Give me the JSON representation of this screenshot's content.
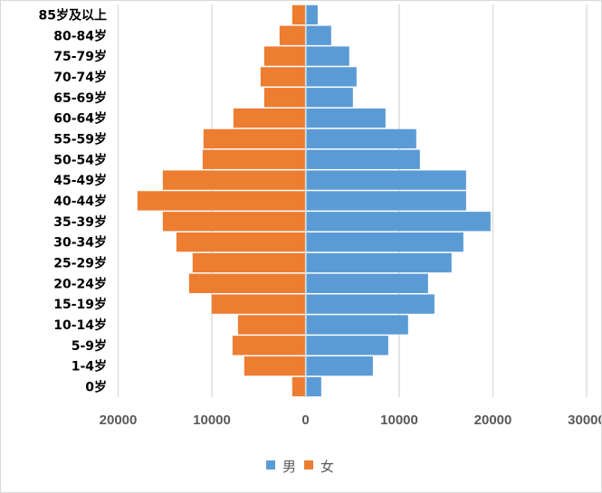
{
  "chart_data": {
    "type": "bar",
    "orientation": "horizontal",
    "layout": "population-pyramid",
    "categories": [
      "85岁及以上",
      "80-84岁",
      "75-79岁",
      "70-74岁",
      "65-69岁",
      "60-64岁",
      "55-59岁",
      "50-54岁",
      "45-49岁",
      "40-44岁",
      "35-39岁",
      "30-34岁",
      "25-29岁",
      "20-24岁",
      "15-19岁",
      "10-14岁",
      "5-9岁",
      "1-4岁",
      "0岁"
    ],
    "series": [
      {
        "name": "男",
        "color": "#5b9bd5",
        "side": "right",
        "values": [
          1200,
          2640,
          4570,
          5350,
          4960,
          8440,
          11720,
          12110,
          17040,
          17040,
          19650,
          16750,
          15490,
          12980,
          13660,
          10850,
          8730,
          7090,
          1580
        ]
      },
      {
        "name": "女",
        "color": "#ed7d31",
        "side": "left",
        "values": [
          1420,
          2770,
          4410,
          4800,
          4410,
          7700,
          10890,
          10980,
          15230,
          17940,
          15230,
          13780,
          12050,
          12430,
          10020,
          7210,
          7790,
          6540,
          1420
        ]
      }
    ],
    "xlim": [
      -20000,
      30000
    ],
    "x_tick_labels": [
      "20000",
      "10000",
      "0",
      "10000",
      "20000",
      "30000"
    ],
    "x_ticks": [
      -20000,
      -10000,
      0,
      10000,
      20000,
      30000
    ],
    "grid": true,
    "legend": "bottom",
    "title": "",
    "xlabel": "",
    "ylabel": ""
  }
}
